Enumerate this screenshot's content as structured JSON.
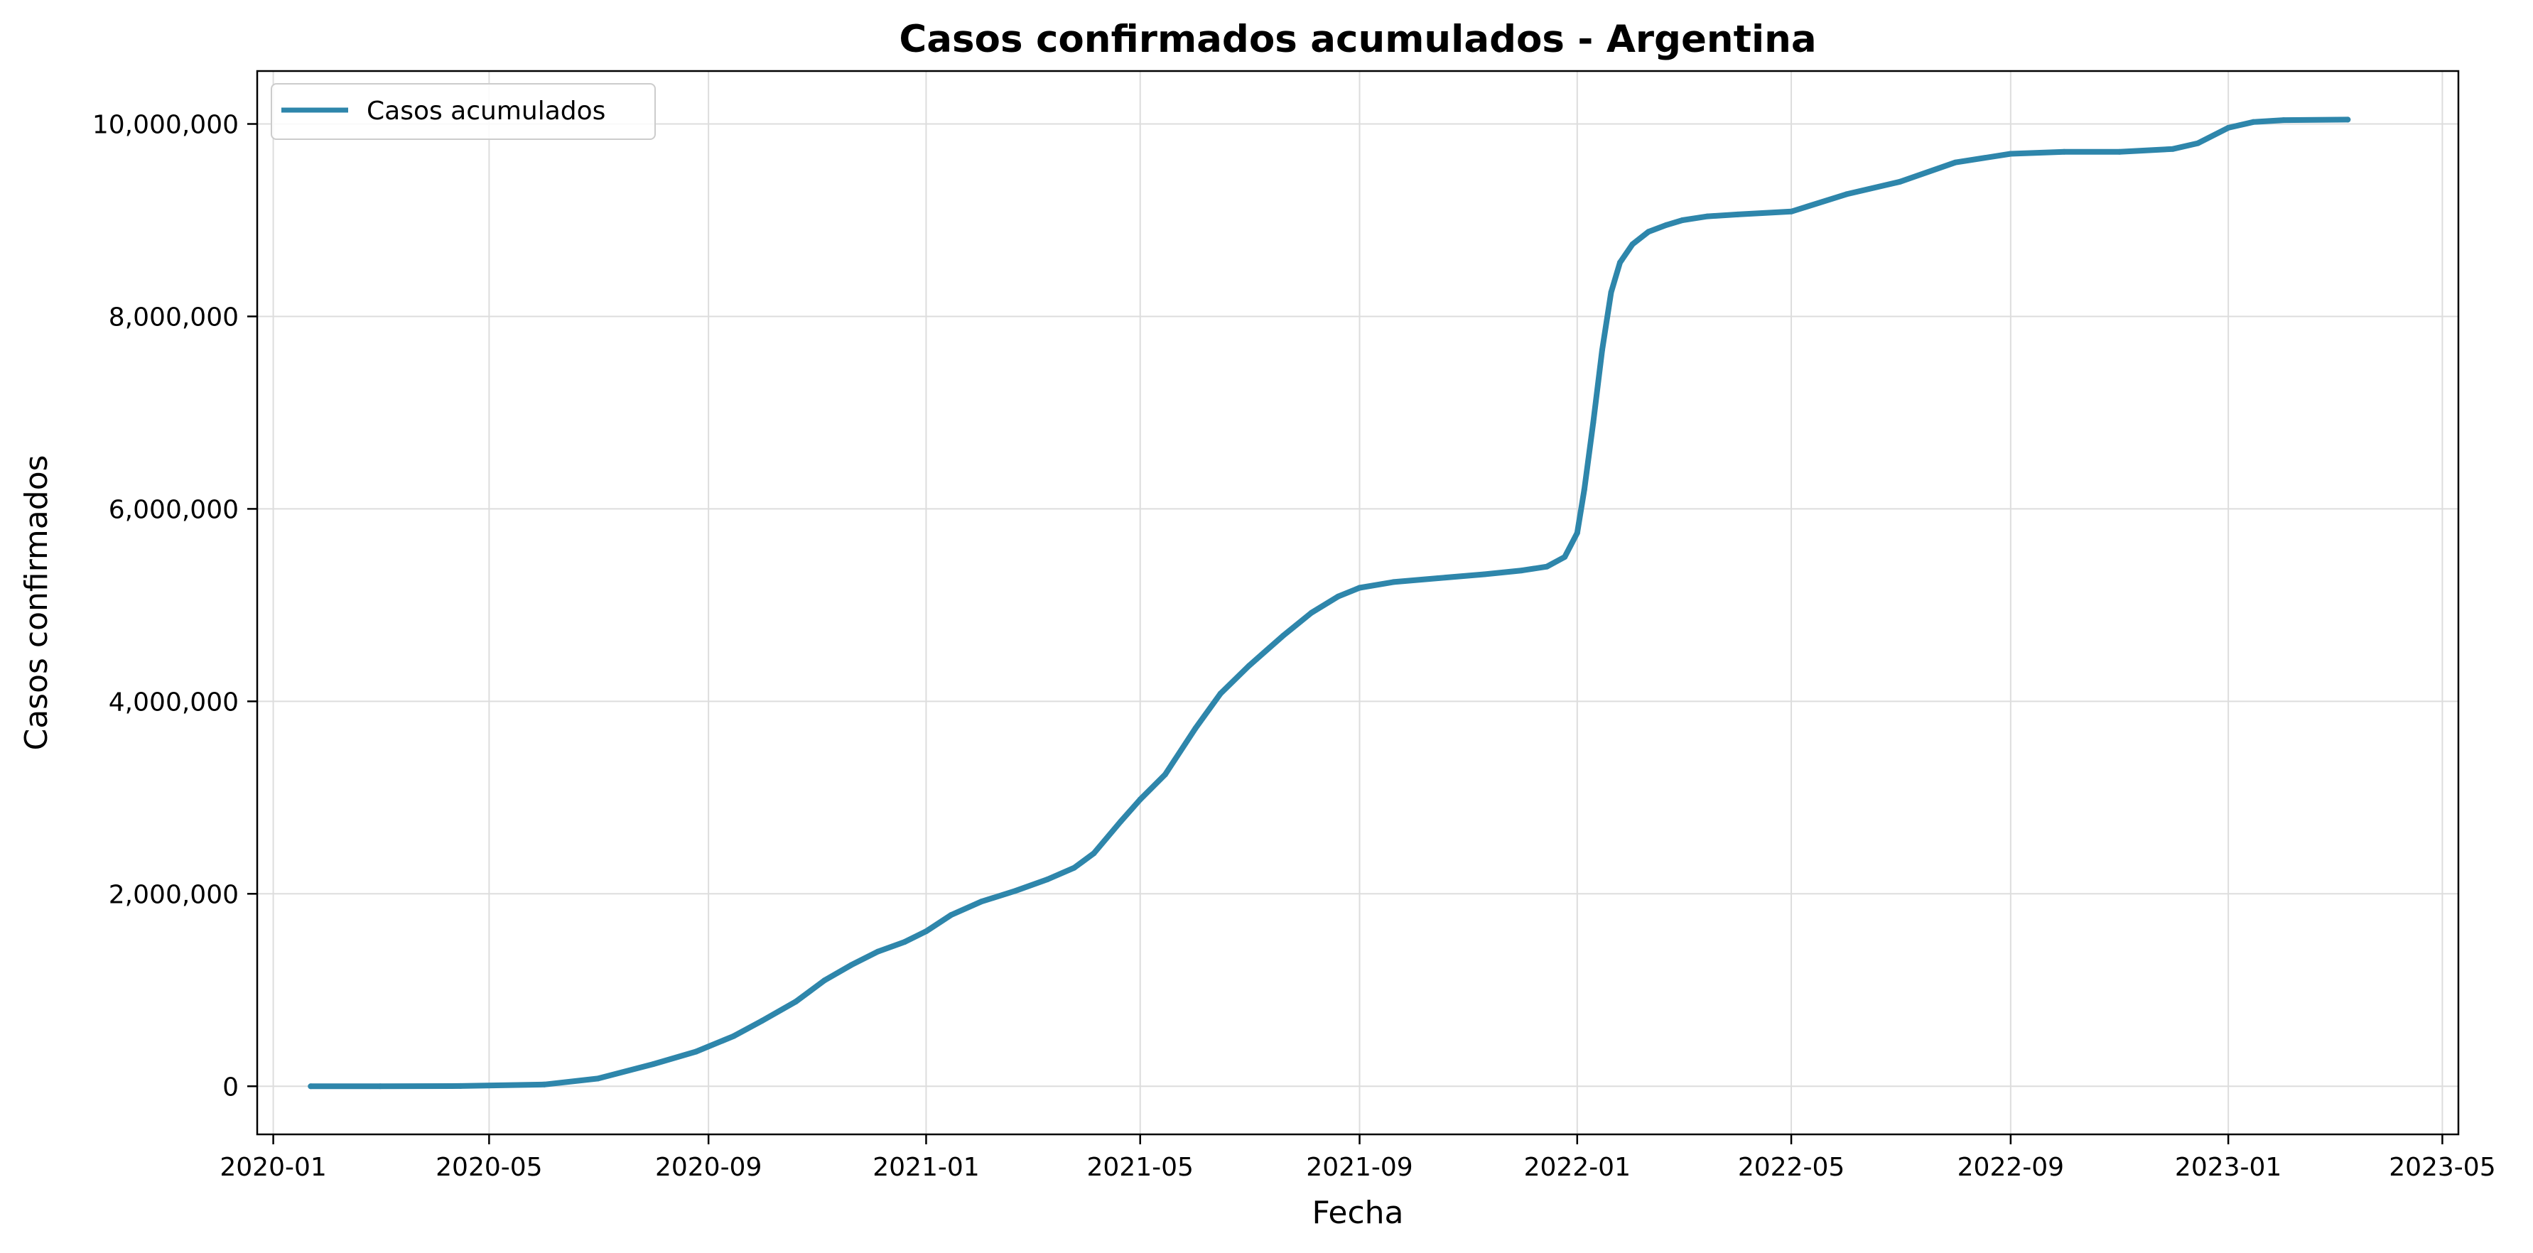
{
  "chart_data": {
    "type": "line",
    "title": "Casos confirmados acumulados - Argentina",
    "xlabel": "Fecha",
    "ylabel": "Casos confirmados",
    "xlim": [
      "2019-12-23",
      "2023-05-10"
    ],
    "ylim": [
      -500000,
      10550000
    ],
    "grid": true,
    "legend_position": "top-left",
    "x_ticks": [
      "2020-01-01",
      "2020-05-01",
      "2020-09-01",
      "2021-01-01",
      "2021-05-01",
      "2021-09-01",
      "2022-01-01",
      "2022-05-01",
      "2022-09-01",
      "2023-01-01",
      "2023-05-01"
    ],
    "x_tick_labels": [
      "2020-01",
      "2020-05",
      "2020-09",
      "2021-01",
      "2021-05",
      "2021-09",
      "2022-01",
      "2022-05",
      "2022-09",
      "2023-01",
      "2023-05"
    ],
    "y_ticks": [
      0,
      2000000,
      4000000,
      6000000,
      8000000,
      10000000
    ],
    "y_tick_labels": [
      "0",
      "2,000,000",
      "4,000,000",
      "6,000,000",
      "8,000,000",
      "10,000,000"
    ],
    "series": [
      {
        "name": "Casos acumulados",
        "color": "#2e86ab",
        "x": [
          "2020-01-22",
          "2020-03-01",
          "2020-04-15",
          "2020-06-01",
          "2020-07-01",
          "2020-08-01",
          "2020-08-25",
          "2020-09-15",
          "2020-10-01",
          "2020-10-20",
          "2020-11-05",
          "2020-11-20",
          "2020-12-05",
          "2020-12-20",
          "2021-01-01",
          "2021-01-15",
          "2021-02-01",
          "2021-02-20",
          "2021-03-10",
          "2021-03-25",
          "2021-04-05",
          "2021-04-20",
          "2021-05-01",
          "2021-05-15",
          "2021-06-01",
          "2021-06-15",
          "2021-07-01",
          "2021-07-20",
          "2021-08-05",
          "2021-08-20",
          "2021-09-01",
          "2021-09-20",
          "2021-10-15",
          "2021-11-10",
          "2021-12-01",
          "2021-12-15",
          "2021-12-25",
          "2022-01-01",
          "2022-01-05",
          "2022-01-10",
          "2022-01-15",
          "2022-01-20",
          "2022-01-25",
          "2022-02-01",
          "2022-02-10",
          "2022-02-20",
          "2022-03-01",
          "2022-03-15",
          "2022-04-01",
          "2022-05-01",
          "2022-06-01",
          "2022-07-01",
          "2022-08-01",
          "2022-09-01",
          "2022-10-01",
          "2022-11-01",
          "2022-12-01",
          "2022-12-15",
          "2023-01-01",
          "2023-01-15",
          "2023-02-01",
          "2023-03-09"
        ],
        "values": [
          0,
          0,
          3000,
          18000,
          80000,
          230000,
          360000,
          520000,
          680000,
          880000,
          1100000,
          1260000,
          1400000,
          1500000,
          1610000,
          1780000,
          1920000,
          2030000,
          2150000,
          2270000,
          2420000,
          2750000,
          2980000,
          3240000,
          3720000,
          4080000,
          4370000,
          4680000,
          4920000,
          5090000,
          5180000,
          5240000,
          5280000,
          5320000,
          5360000,
          5400000,
          5500000,
          5750000,
          6200000,
          6900000,
          7650000,
          8250000,
          8560000,
          8750000,
          8880000,
          8950000,
          9000000,
          9040000,
          9060000,
          9090000,
          9270000,
          9400000,
          9600000,
          9690000,
          9710000,
          9710000,
          9740000,
          9800000,
          9960000,
          10020000,
          10040000,
          10045000
        ]
      }
    ]
  }
}
